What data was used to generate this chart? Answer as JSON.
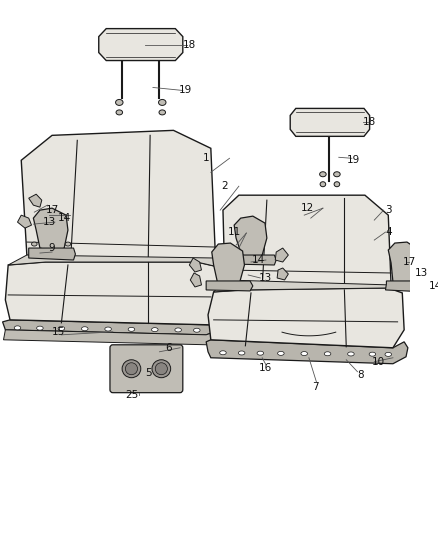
{
  "background_color": "#ffffff",
  "fig_width": 4.38,
  "fig_height": 5.33,
  "dpi": 100,
  "line_color": "#1a1a1a",
  "seat_fill": "#e8e6e0",
  "seat_fill_dark": "#d4d2cb",
  "bracket_fill": "#c0bdb5",
  "metal_fill": "#b8b5ad",
  "label_fontsize": 7.5,
  "leader_color": "#555555"
}
